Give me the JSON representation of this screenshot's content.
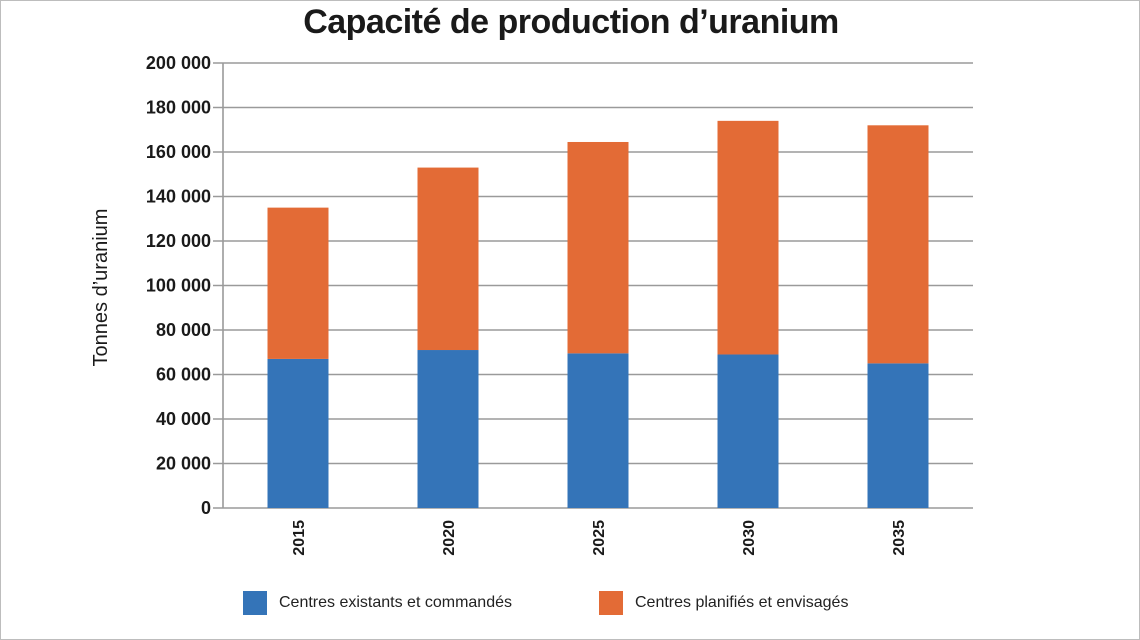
{
  "chart_data": {
    "type": "bar",
    "stacked": true,
    "title": "Capacité de production d’uranium",
    "ylabel": "Tonnes d’uranium",
    "xlabel": "",
    "categories": [
      "2015",
      "2020",
      "2025",
      "2030",
      "2035"
    ],
    "series": [
      {
        "name": "Centres existants et commandés",
        "color": "#3474b8",
        "values": [
          67000,
          71000,
          69500,
          69000,
          65000
        ]
      },
      {
        "name": "Centres planifiés et envisagés",
        "color": "#e36b36",
        "values": [
          68000,
          82000,
          95000,
          105000,
          107000
        ]
      }
    ],
    "ylim": [
      0,
      200000
    ],
    "yticks": [
      0,
      20000,
      40000,
      60000,
      80000,
      100000,
      120000,
      140000,
      160000,
      180000,
      200000
    ],
    "ytick_labels": [
      "0",
      "20 000",
      "40 000",
      "60 000",
      "80 000",
      "100 000",
      "120 000",
      "140 000",
      "160 000",
      "180 000",
      "200 000"
    ],
    "grid": true,
    "legend_position": "bottom"
  }
}
